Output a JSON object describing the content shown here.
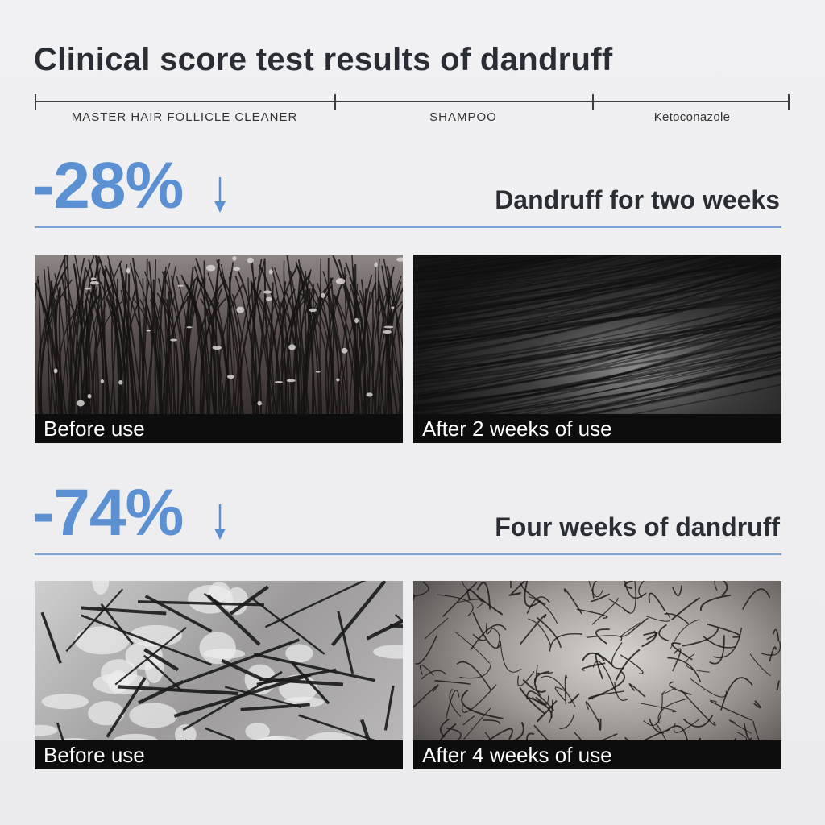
{
  "title": "Clinical score test results of dandruff",
  "scale": {
    "labels": [
      "MASTER HAIR FOLLICLE CLEANER",
      "SHAMPOO",
      "Ketoconazole"
    ]
  },
  "accent_color": "#5b90d2",
  "sections": [
    {
      "percent": "-28%",
      "arrow_icon": "arrow-down-icon",
      "heading": "Dandruff for two weeks",
      "photos": [
        {
          "caption": "Before use"
        },
        {
          "caption": "After 2 weeks of use"
        }
      ]
    },
    {
      "percent": "-74%",
      "arrow_icon": "arrow-down-icon",
      "heading": "Four weeks of dandruff",
      "photos": [
        {
          "caption": "Before use"
        },
        {
          "caption": "After 4 weeks of use"
        }
      ]
    }
  ]
}
